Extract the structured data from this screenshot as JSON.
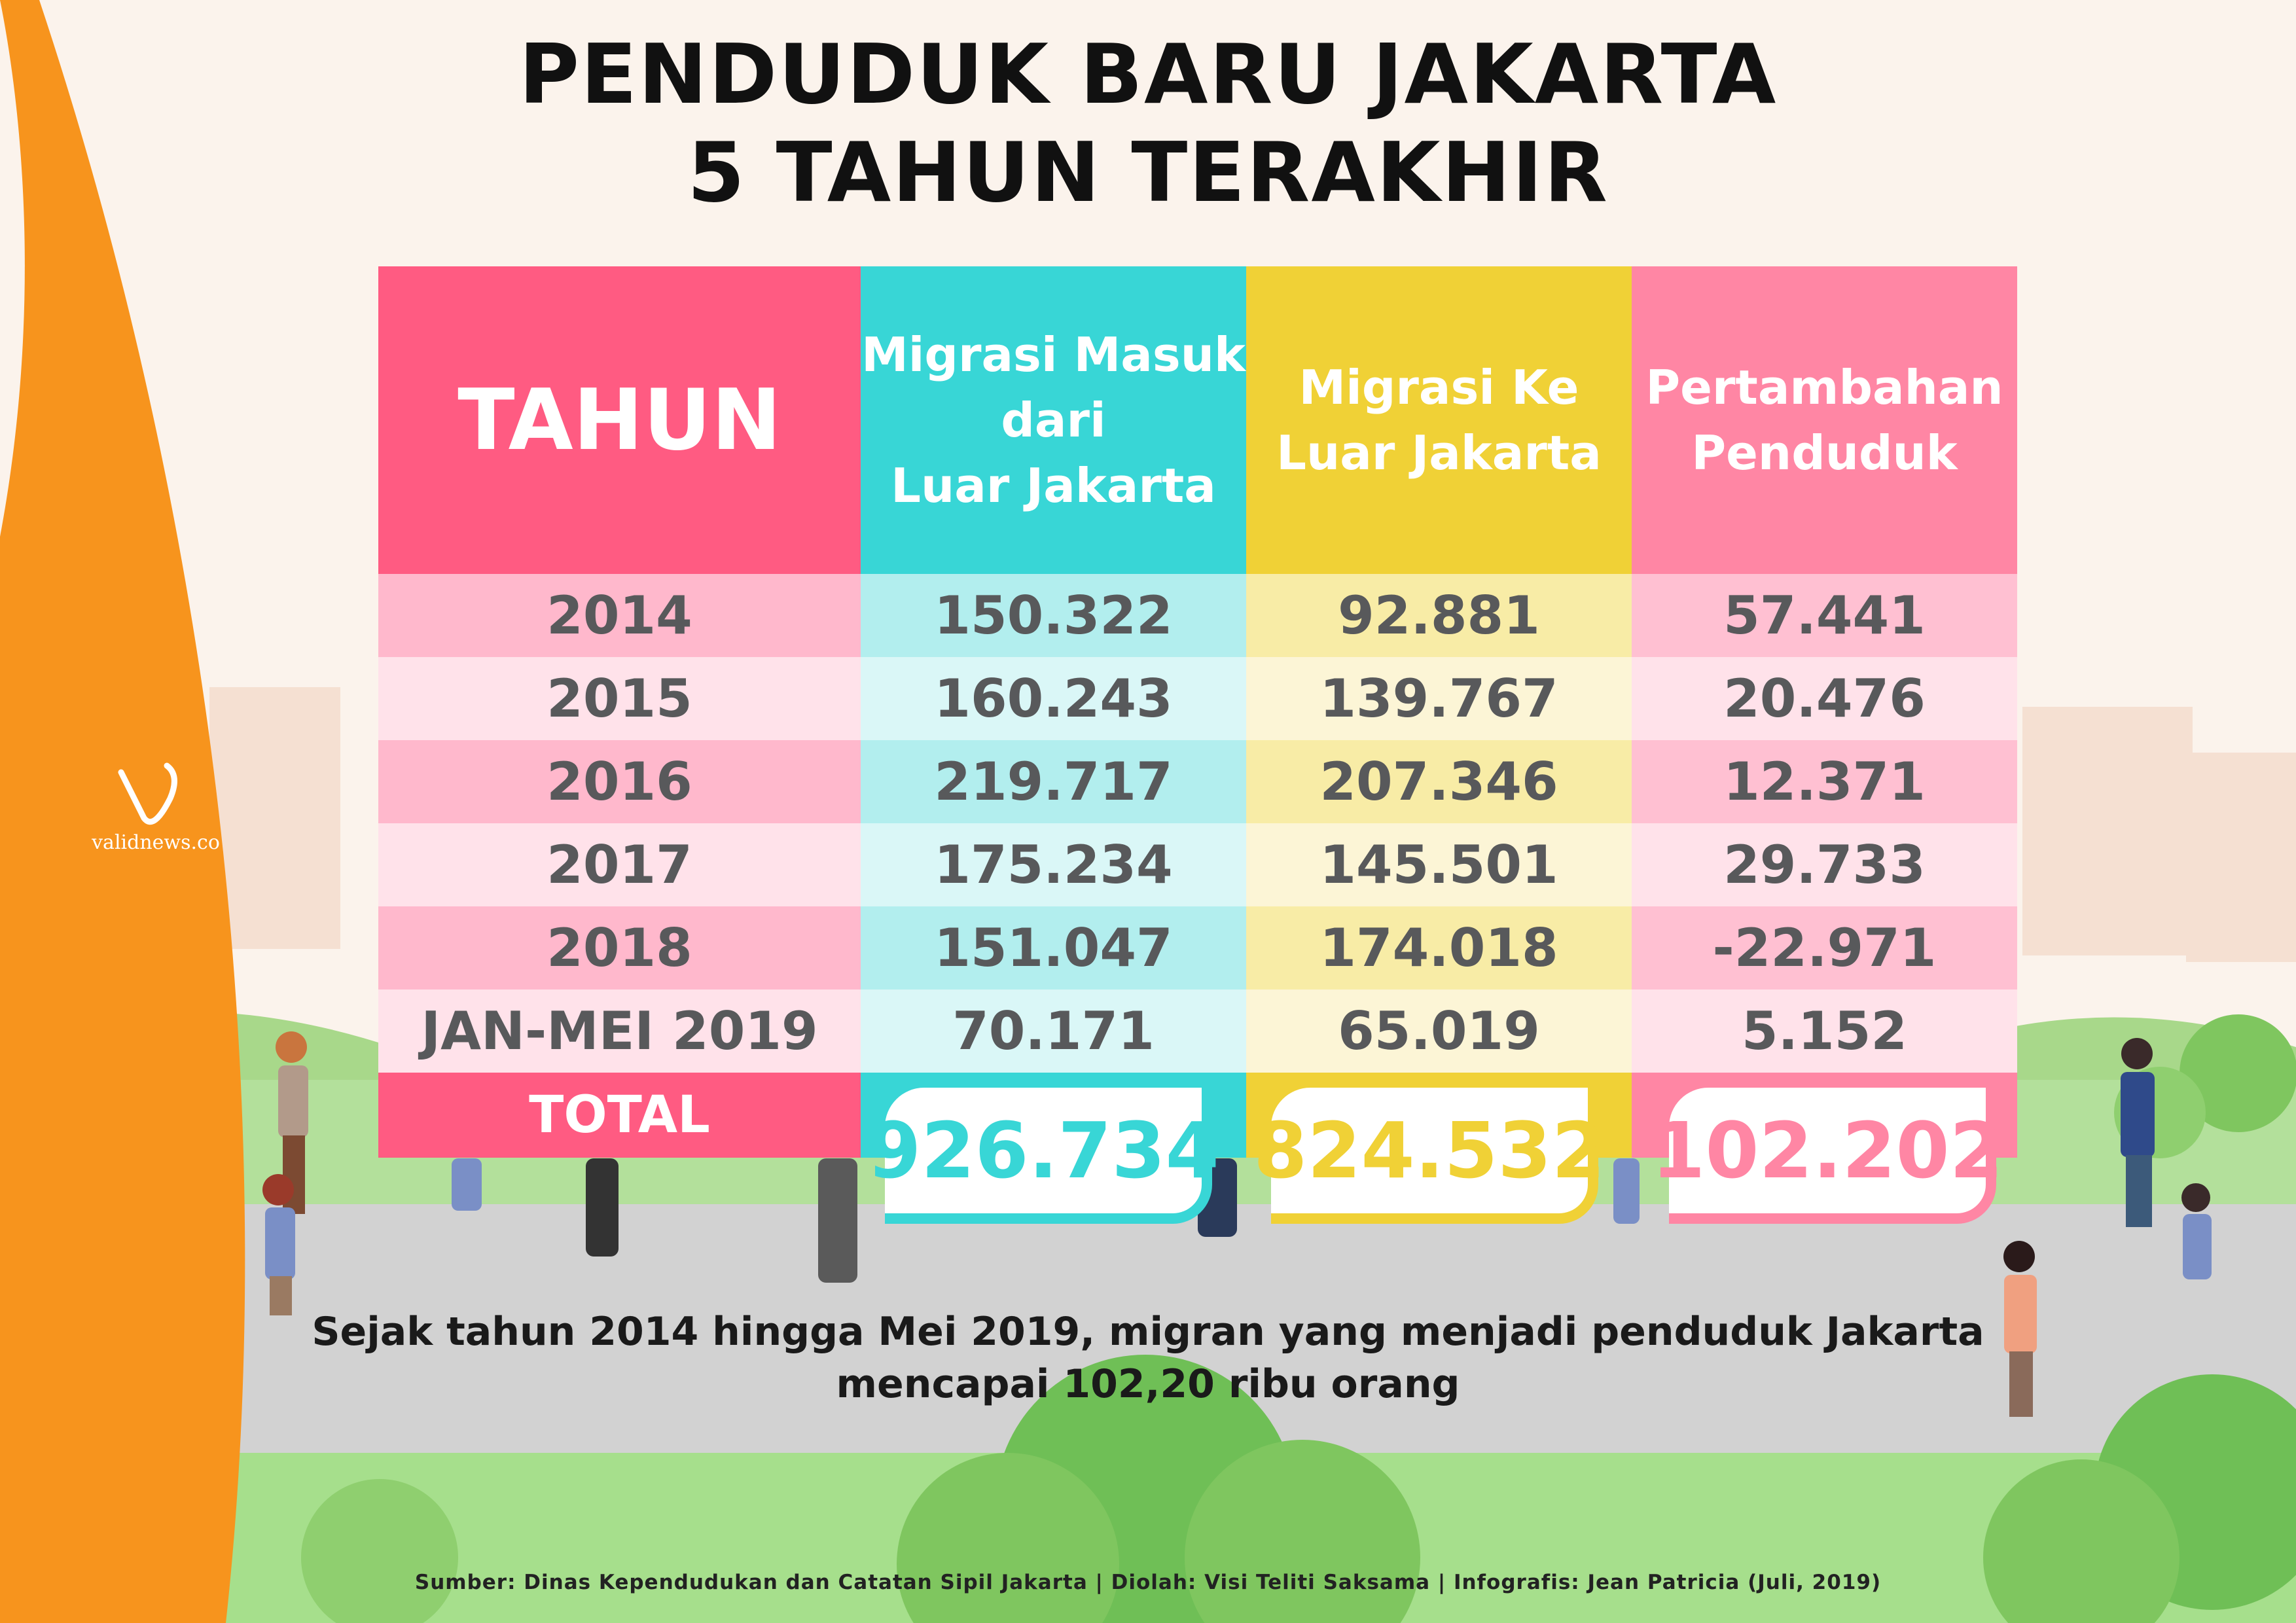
{
  "title_line1": "PENDUDUK BARU JAKARTA",
  "title_line2": "5 TAHUN TERAKHIR",
  "brand": "validnews.co",
  "colors": {
    "tahun": "#ff5b82",
    "migrasi_masuk": "#38d6d6",
    "migrasi_keluar": "#f0d136",
    "pertambahan": "#ff86a4",
    "orange_accent": "#f7941d"
  },
  "table": {
    "headers": {
      "tahun": [
        "TAHUN"
      ],
      "migrasi_masuk": [
        "Migrasi Masuk",
        "dari",
        "Luar Jakarta"
      ],
      "migrasi_keluar": [
        "Migrasi Ke",
        "Luar Jakarta"
      ],
      "pertambahan": [
        "Pertambahan",
        "Penduduk"
      ]
    },
    "rows": [
      {
        "tahun": "2014",
        "masuk": "150.322",
        "keluar": "92.881",
        "pertambahan": "57.441"
      },
      {
        "tahun": "2015",
        "masuk": "160.243",
        "keluar": "139.767",
        "pertambahan": "20.476"
      },
      {
        "tahun": "2016",
        "masuk": "219.717",
        "keluar": "207.346",
        "pertambahan": "12.371"
      },
      {
        "tahun": "2017",
        "masuk": "175.234",
        "keluar": "145.501",
        "pertambahan": "29.733"
      },
      {
        "tahun": "2018",
        "masuk": "151.047",
        "keluar": "174.018",
        "pertambahan": "-22.971"
      },
      {
        "tahun": "JAN-MEI 2019",
        "masuk": "70.171",
        "keluar": "65.019",
        "pertambahan": "5.152"
      }
    ],
    "total_label": "TOTAL",
    "totals": {
      "masuk": "926.734",
      "keluar": "824.532",
      "pertambahan": "102.202"
    }
  },
  "caption_line1": "Sejak tahun 2014 hingga Mei 2019, migran yang menjadi penduduk Jakarta",
  "caption_line2": "mencapai 102,20 ribu orang",
  "source": "Sumber: Dinas Kependudukan dan Catatan Sipil Jakarta | Diolah:  Visi Teliti Saksama | Infografis: Jean Patricia (Juli, 2019)"
}
